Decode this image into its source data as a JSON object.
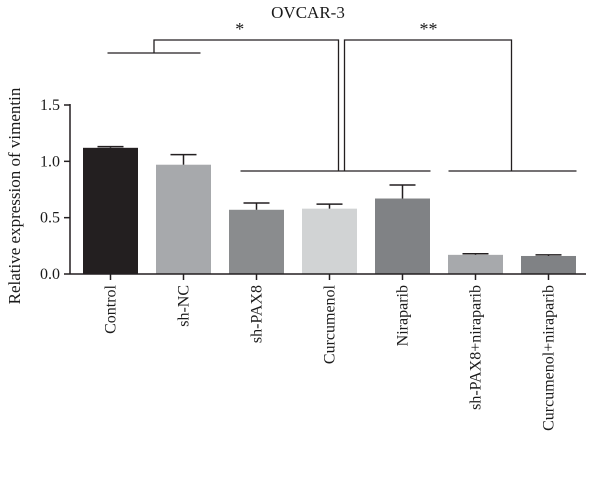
{
  "chart_data": {
    "type": "bar",
    "title": "OVCAR-3",
    "xlabel": "",
    "ylabel": "Relative expression of vimentin",
    "ylim": [
      0,
      1.5
    ],
    "yticks": [
      "0.0",
      "0.5",
      "1.0",
      "1.5"
    ],
    "categories": [
      "Control",
      "sh-NC",
      "sh-PAX8",
      "Curcumenol",
      "Niraparib",
      "sh-PAX8+niraparib",
      "Curcumenol+niraparib"
    ],
    "values": [
      1.12,
      0.97,
      0.57,
      0.58,
      0.67,
      0.17,
      0.16
    ],
    "errors": [
      0.01,
      0.09,
      0.06,
      0.04,
      0.12,
      0.01,
      0.01
    ],
    "colors": [
      "#231f20",
      "#a7a9ac",
      "#8a8c8e",
      "#d1d3d4",
      "#808285",
      "#a7a9ac",
      "#808285"
    ],
    "significance": [
      {
        "label": "*",
        "groups_left": [
          0,
          1
        ],
        "groups_right": [
          2,
          3,
          4
        ]
      },
      {
        "label": "**",
        "groups_left": [
          2,
          3,
          4
        ],
        "groups_right": [
          5,
          6
        ]
      }
    ],
    "grid": false,
    "legend": "none"
  }
}
